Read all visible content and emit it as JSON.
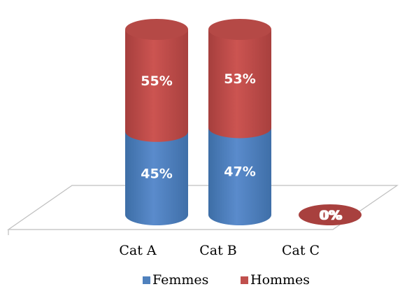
{
  "chart_data": {
    "type": "bar",
    "stacked": true,
    "percent": true,
    "three_d": true,
    "cylinder": true,
    "categories": [
      "Cat A",
      "Cat B",
      "Cat C"
    ],
    "series": [
      {
        "name": "Femmes",
        "values": [
          45,
          47,
          0
        ],
        "labels": [
          "45%",
          "47%",
          "0%"
        ]
      },
      {
        "name": "Hommes",
        "values": [
          55,
          53,
          0
        ],
        "labels": [
          "55%",
          "53%",
          "0%"
        ]
      }
    ],
    "ylim": [
      0,
      100
    ],
    "legend": "bottom",
    "colors": {
      "Femmes": "#4f81bd",
      "Hommes": "#c0504d",
      "floor_stroke": "#bfbfbf"
    }
  }
}
